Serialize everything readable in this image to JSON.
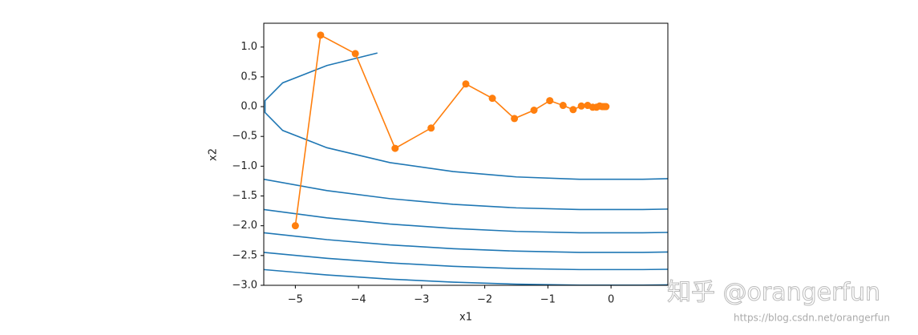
{
  "chart_data": {
    "type": "line",
    "xlabel": "x1",
    "ylabel": "x2",
    "xlim": [
      -5.5,
      0.9
    ],
    "ylim": [
      -3.0,
      1.4
    ],
    "xticks": [
      {
        "value": -5,
        "label": "−5"
      },
      {
        "value": -4,
        "label": "−4"
      },
      {
        "value": -3,
        "label": "−3"
      },
      {
        "value": -2,
        "label": "−2"
      },
      {
        "value": -1,
        "label": "−1"
      },
      0
    ],
    "yticks": [
      {
        "value": 1.0,
        "label": "1.0"
      },
      0.5,
      {
        "value": 0.0,
        "label": "0.0"
      },
      {
        "value": -0.5,
        "label": "−0.5"
      },
      {
        "value": -1.0,
        "label": "−1.0"
      },
      {
        "value": -1.5,
        "label": "−1.5"
      },
      {
        "value": -2.0,
        "label": "−2.0"
      },
      {
        "value": -2.5,
        "label": "−2.5"
      },
      {
        "value": -3.0,
        "label": "−3.0"
      }
    ],
    "series": [
      {
        "color": "#1f77b4",
        "x": [
          -3.7,
          -4.5,
          -5.2,
          -5.48,
          -5.48,
          -5.2,
          -4.5,
          -3.5,
          -2.5,
          -1.5,
          -0.5,
          0.5,
          0.9
        ],
        "y": [
          0.9,
          0.69,
          0.4,
          0.1,
          -0.1,
          -0.4,
          -0.69,
          -0.94,
          -1.09,
          -1.18,
          -1.22,
          -1.22,
          -1.21
        ]
      },
      {
        "color": "#1f77b4",
        "x": [
          -5.5,
          -4.5,
          -3.5,
          -2.5,
          -1.5,
          -0.5,
          0.5,
          0.9
        ],
        "y": [
          -1.22,
          -1.41,
          -1.545,
          -1.64,
          -1.7,
          -1.728,
          -1.728,
          -1.72
        ]
      },
      {
        "color": "#1f77b4",
        "x": [
          -5.5,
          -4.5,
          -3.5,
          -2.5,
          -1.5,
          -0.5,
          0.5,
          0.9
        ],
        "y": [
          -1.728,
          -1.867,
          -1.972,
          -2.046,
          -2.095,
          -2.118,
          -2.118,
          -2.112
        ]
      },
      {
        "color": "#1f77b4",
        "x": [
          -5.5,
          -4.5,
          -3.5,
          -2.5,
          -1.5,
          -0.5,
          0.5,
          0.9
        ],
        "y": [
          -2.118,
          -2.233,
          -2.321,
          -2.385,
          -2.426,
          -2.447,
          -2.447,
          -2.441
        ]
      },
      {
        "color": "#1f77b4",
        "x": [
          -5.5,
          -4.5,
          -3.5,
          -2.5,
          -1.5,
          -0.5,
          0.5,
          0.9
        ],
        "y": [
          -2.447,
          -2.547,
          -2.624,
          -2.681,
          -2.718,
          -2.736,
          -2.736,
          -2.731
        ]
      },
      {
        "color": "#1f77b4",
        "x": [
          -5.5,
          -4.5,
          -3.5,
          -2.5,
          -1.5,
          -0.5,
          0.5,
          0.9
        ],
        "y": [
          -2.736,
          -2.826,
          -2.896,
          -2.947,
          -2.981,
          -2.998,
          -2.998,
          -2.993
        ]
      },
      {
        "color": "#ff7f0e",
        "markers": true,
        "x": [
          -5,
          -4.6,
          -4.05,
          -3.42,
          -2.85,
          -2.3,
          -1.88,
          -1.53,
          -1.22,
          -0.97,
          -0.76,
          -0.6,
          -0.47,
          -0.37,
          -0.29,
          -0.23,
          -0.18,
          -0.14,
          -0.11,
          -0.08
        ],
        "y": [
          -2,
          1.2,
          0.89,
          -0.7,
          -0.36,
          0.38,
          0.14,
          -0.2,
          -0.06,
          0.1,
          0.02,
          -0.05,
          0.01,
          0.02,
          -0.01,
          -0.01,
          0.01,
          0.0,
          0.0,
          0.0
        ]
      }
    ]
  },
  "watermark": {
    "text": "知乎 @orangerfun",
    "url": "https://blog.csdn.net/orangerfun"
  }
}
